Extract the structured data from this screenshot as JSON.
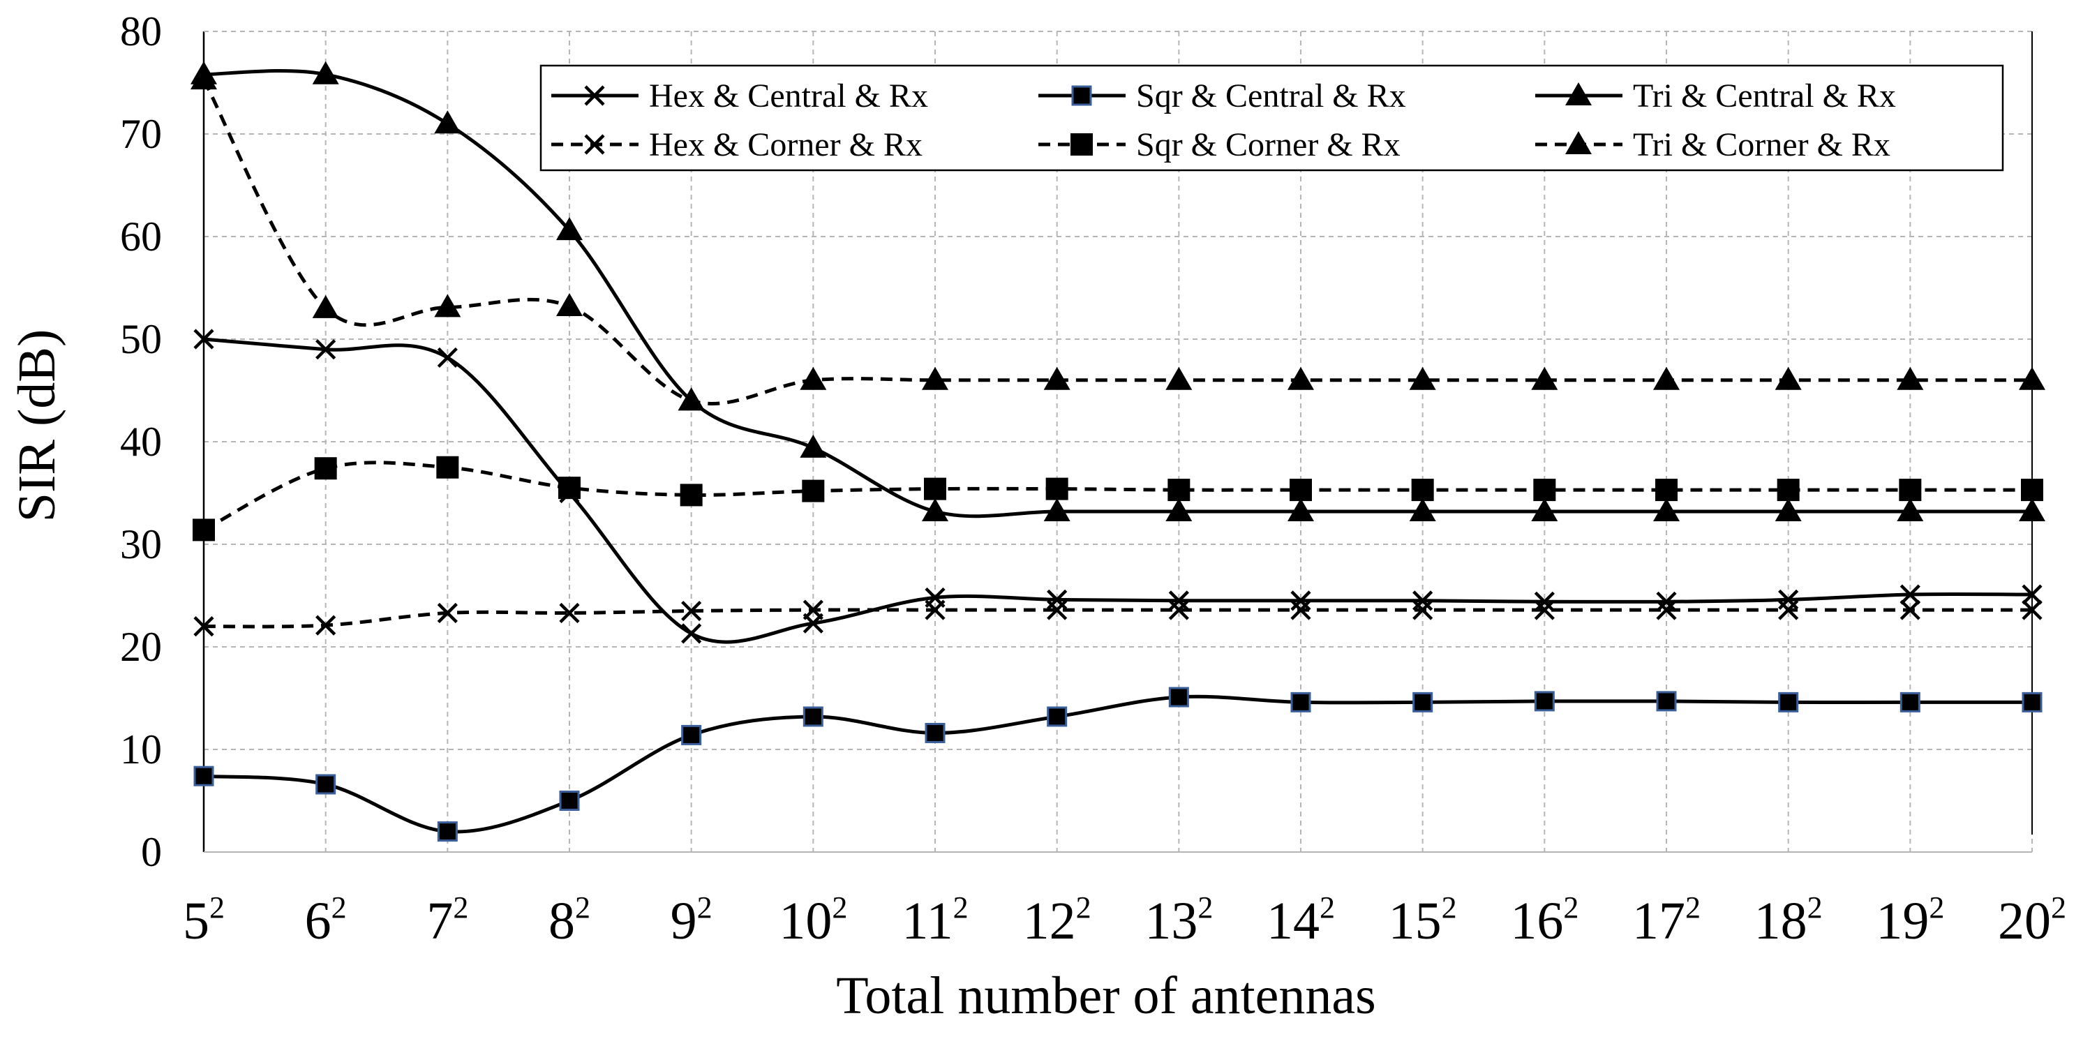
{
  "chart_data": {
    "type": "line",
    "title": "",
    "xlabel": "Total number of antennas",
    "ylabel": "SIR (dB)",
    "ylim": [
      0,
      80
    ],
    "yticks": [
      "0",
      "10",
      "20",
      "30",
      "40",
      "50",
      "60",
      "70",
      "80"
    ],
    "grid": true,
    "legend_position": "top-right",
    "categories": [
      {
        "base": "5",
        "exp": "2"
      },
      {
        "base": "6",
        "exp": "2"
      },
      {
        "base": "7",
        "exp": "2"
      },
      {
        "base": "8",
        "exp": "2"
      },
      {
        "base": "9",
        "exp": "2"
      },
      {
        "base": "10",
        "exp": "2"
      },
      {
        "base": "11",
        "exp": "2"
      },
      {
        "base": "12",
        "exp": "2"
      },
      {
        "base": "13",
        "exp": "2"
      },
      {
        "base": "14",
        "exp": "2"
      },
      {
        "base": "15",
        "exp": "2"
      },
      {
        "base": "16",
        "exp": "2"
      },
      {
        "base": "17",
        "exp": "2"
      },
      {
        "base": "18",
        "exp": "2"
      },
      {
        "base": "19",
        "exp": "2"
      },
      {
        "base": "20",
        "exp": "2"
      }
    ],
    "series": [
      {
        "name": "Hex & Central & Rx",
        "style": "solid",
        "marker": "x",
        "values": [
          50,
          49,
          48.2,
          35,
          21.3,
          22.3,
          24.8,
          24.6,
          24.5,
          24.5,
          24.5,
          24.4,
          24.4,
          24.6,
          25.1,
          25.1
        ]
      },
      {
        "name": "Sqr & Central & Rx",
        "style": "solid",
        "marker": "square-blue",
        "values": [
          7.4,
          6.6,
          2,
          5,
          11.4,
          13.2,
          11.6,
          13.2,
          15.1,
          14.6,
          14.6,
          14.7,
          14.7,
          14.6,
          14.6,
          14.6
        ]
      },
      {
        "name": "Tri & Central & Rx",
        "style": "solid",
        "marker": "triangle",
        "values": [
          75.8,
          75.8,
          71,
          60.6,
          44,
          39.4,
          33.2,
          33.2,
          33.2,
          33.2,
          33.2,
          33.2,
          33.2,
          33.2,
          33.2,
          33.2
        ]
      },
      {
        "name": "Hex & Corner & Rx",
        "style": "dashed",
        "marker": "x",
        "values": [
          22,
          22.1,
          23.3,
          23.3,
          23.5,
          23.6,
          23.6,
          23.6,
          23.6,
          23.6,
          23.6,
          23.6,
          23.6,
          23.6,
          23.6,
          23.6
        ]
      },
      {
        "name": "Sqr & Corner & Rx",
        "style": "dashed",
        "marker": "square",
        "values": [
          31.4,
          37.4,
          37.5,
          35.5,
          34.8,
          35.2,
          35.4,
          35.4,
          35.3,
          35.3,
          35.3,
          35.3,
          35.3,
          35.3,
          35.3,
          35.3
        ]
      },
      {
        "name": "Tri & Corner & Rx",
        "style": "dashed",
        "marker": "triangle",
        "values": [
          75.3,
          53,
          53.1,
          53.2,
          44,
          46,
          46,
          46,
          46,
          46,
          46,
          46,
          46,
          46,
          46,
          46
        ]
      }
    ]
  }
}
